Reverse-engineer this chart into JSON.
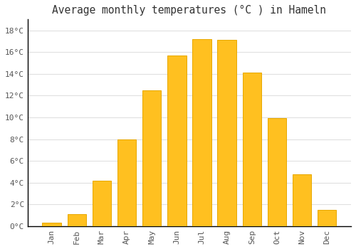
{
  "title": "Average monthly temperatures (°C ) in Hameln",
  "months": [
    "Jan",
    "Feb",
    "Mar",
    "Apr",
    "May",
    "Jun",
    "Jul",
    "Aug",
    "Sep",
    "Oct",
    "Nov",
    "Dec"
  ],
  "values": [
    0.3,
    1.1,
    4.2,
    8.0,
    12.5,
    15.7,
    17.2,
    17.1,
    14.1,
    9.9,
    4.8,
    1.5
  ],
  "bar_color": "#FFC020",
  "bar_edge_color": "#E8A800",
  "background_color": "#ffffff",
  "grid_color": "#e0e0e0",
  "ylim": [
    0,
    19
  ],
  "yticks": [
    0,
    2,
    4,
    6,
    8,
    10,
    12,
    14,
    16,
    18
  ],
  "title_fontsize": 10.5,
  "tick_fontsize": 8,
  "font_family": "monospace"
}
